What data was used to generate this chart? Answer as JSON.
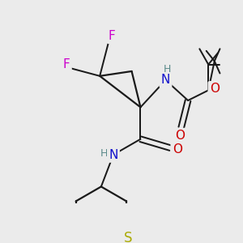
{
  "bg_color": "#ebebeb",
  "bond_color": "#1a1a1a",
  "bond_width": 1.6,
  "atom_colors": {
    "C": "#1a1a1a",
    "H": "#5a8a8a",
    "N": "#1010cc",
    "O": "#cc0000",
    "F": "#cc00cc",
    "S": "#aaaa00"
  }
}
